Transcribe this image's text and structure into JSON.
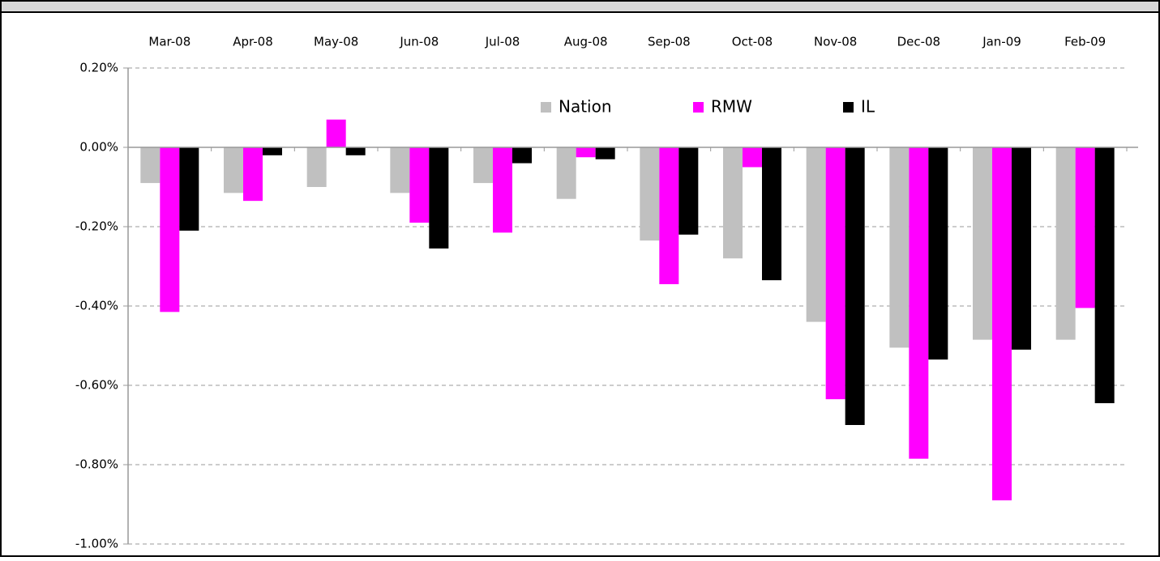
{
  "chart_data": {
    "type": "bar",
    "categories": [
      "Mar-08",
      "Apr-08",
      "May-08",
      "Jun-08",
      "Jul-08",
      "Aug-08",
      "Sep-08",
      "Oct-08",
      "Nov-08",
      "Dec-08",
      "Jan-09",
      "Feb-09"
    ],
    "series": [
      {
        "name": "Nation",
        "color": "#c0c0c0",
        "values": [
          -0.09,
          -0.115,
          -0.1,
          -0.115,
          -0.09,
          -0.13,
          -0.235,
          -0.28,
          -0.44,
          -0.505,
          -0.485,
          -0.485
        ]
      },
      {
        "name": "RMW",
        "color": "#ff00ff",
        "values": [
          -0.415,
          -0.135,
          0.07,
          -0.19,
          -0.215,
          -0.025,
          -0.345,
          -0.05,
          -0.635,
          -0.785,
          -0.89,
          -0.405
        ]
      },
      {
        "name": "IL",
        "color": "#000000",
        "values": [
          -0.21,
          -0.02,
          -0.02,
          -0.255,
          -0.04,
          -0.03,
          -0.22,
          -0.335,
          -0.7,
          -0.535,
          -0.51,
          -0.645
        ]
      }
    ],
    "ylim": [
      -1.0,
      0.2
    ],
    "yticks": [
      {
        "value": 0.2,
        "label": "0.20%"
      },
      {
        "value": 0,
        "label": "0.00%"
      },
      {
        "value": -0.2,
        "label": "-0.20%"
      },
      {
        "value": -0.4,
        "label": "-0.40%"
      },
      {
        "value": -0.6,
        "label": "-0.60%"
      },
      {
        "value": -0.8,
        "label": "-0.80%"
      },
      {
        "value": -1.0,
        "label": "-1.00%"
      }
    ],
    "grid": true,
    "legend": "upper center",
    "category_labels": "top"
  }
}
